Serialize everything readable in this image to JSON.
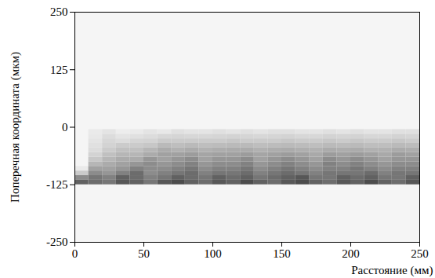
{
  "chart_data": {
    "type": "heatmap",
    "x_label": "Расстояние (мм)",
    "y_label": "Поперечная координата (мкм)",
    "xlim": [
      0,
      250
    ],
    "xticks": [
      0,
      50,
      100,
      150,
      200,
      250
    ],
    "ylim": [
      -250,
      250
    ],
    "yticks": [
      -250,
      -125,
      0,
      125,
      250
    ],
    "x": [
      5,
      15,
      25,
      35,
      45,
      55,
      65,
      75,
      85,
      95,
      105,
      115,
      125,
      135,
      145,
      155,
      165,
      175,
      185,
      195,
      205,
      215,
      225,
      235,
      245
    ],
    "y": [
      -120,
      -110,
      -100,
      -90,
      -80,
      -70,
      -60,
      -50,
      -40,
      -30,
      -20,
      -10
    ],
    "zlim": [
      0,
      1
    ],
    "values": [
      [
        0.7,
        0.65,
        0.6,
        0.75,
        0.7,
        0.6,
        0.75,
        0.8,
        0.7,
        0.65,
        0.75,
        0.7,
        0.8,
        0.7,
        0.65,
        0.75,
        0.8,
        0.7,
        0.65,
        0.75,
        0.7,
        0.8,
        0.7,
        0.65,
        0.75
      ],
      [
        0.5,
        0.6,
        0.55,
        0.7,
        0.65,
        0.55,
        0.6,
        0.7,
        0.65,
        0.6,
        0.7,
        0.65,
        0.7,
        0.6,
        0.65,
        0.7,
        0.75,
        0.6,
        0.6,
        0.7,
        0.65,
        0.7,
        0.6,
        0.6,
        0.7
      ],
      [
        0.2,
        0.5,
        0.45,
        0.55,
        0.65,
        0.5,
        0.55,
        0.6,
        0.65,
        0.55,
        0.6,
        0.6,
        0.65,
        0.55,
        0.6,
        0.65,
        0.6,
        0.55,
        0.6,
        0.6,
        0.6,
        0.65,
        0.55,
        0.6,
        0.6
      ],
      [
        0.05,
        0.4,
        0.4,
        0.45,
        0.55,
        0.5,
        0.5,
        0.55,
        0.6,
        0.5,
        0.55,
        0.55,
        0.6,
        0.5,
        0.55,
        0.6,
        0.55,
        0.5,
        0.55,
        0.55,
        0.6,
        0.55,
        0.5,
        0.55,
        0.55
      ],
      [
        0,
        0.3,
        0.35,
        0.4,
        0.45,
        0.5,
        0.45,
        0.5,
        0.55,
        0.45,
        0.5,
        0.5,
        0.55,
        0.45,
        0.5,
        0.55,
        0.5,
        0.45,
        0.55,
        0.5,
        0.55,
        0.5,
        0.45,
        0.5,
        0.5
      ],
      [
        0,
        0.22,
        0.3,
        0.35,
        0.35,
        0.45,
        0.4,
        0.45,
        0.5,
        0.4,
        0.45,
        0.45,
        0.5,
        0.4,
        0.45,
        0.5,
        0.45,
        0.4,
        0.5,
        0.45,
        0.5,
        0.45,
        0.4,
        0.45,
        0.45
      ],
      [
        0,
        0.16,
        0.25,
        0.3,
        0.3,
        0.35,
        0.4,
        0.4,
        0.42,
        0.38,
        0.4,
        0.4,
        0.42,
        0.38,
        0.4,
        0.42,
        0.4,
        0.36,
        0.42,
        0.4,
        0.42,
        0.4,
        0.36,
        0.42,
        0.4
      ],
      [
        0,
        0.12,
        0.2,
        0.25,
        0.25,
        0.3,
        0.35,
        0.32,
        0.35,
        0.32,
        0.34,
        0.35,
        0.35,
        0.32,
        0.34,
        0.35,
        0.33,
        0.32,
        0.35,
        0.34,
        0.35,
        0.32,
        0.32,
        0.35,
        0.34
      ],
      [
        0,
        0.1,
        0.16,
        0.2,
        0.2,
        0.22,
        0.28,
        0.26,
        0.28,
        0.26,
        0.27,
        0.28,
        0.28,
        0.26,
        0.27,
        0.28,
        0.27,
        0.26,
        0.28,
        0.27,
        0.28,
        0.26,
        0.26,
        0.28,
        0.27
      ],
      [
        0,
        0.08,
        0.14,
        0.12,
        0.15,
        0.16,
        0.2,
        0.2,
        0.2,
        0.2,
        0.2,
        0.22,
        0.2,
        0.2,
        0.2,
        0.22,
        0.2,
        0.2,
        0.22,
        0.2,
        0.22,
        0.2,
        0.2,
        0.22,
        0.2
      ],
      [
        0,
        0.06,
        0.12,
        0.08,
        0.1,
        0.12,
        0.14,
        0.15,
        0.14,
        0.14,
        0.15,
        0.16,
        0.15,
        0.14,
        0.15,
        0.16,
        0.14,
        0.14,
        0.16,
        0.15,
        0.16,
        0.14,
        0.14,
        0.16,
        0.15
      ],
      [
        0,
        0.05,
        0.08,
        0.04,
        0.05,
        0.08,
        0.06,
        0.1,
        0.08,
        0.08,
        0.1,
        0.08,
        0.1,
        0.08,
        0.1,
        0.1,
        0.08,
        0.08,
        0.1,
        0.08,
        0.1,
        0.08,
        0.08,
        0.1,
        0.1
      ]
    ]
  }
}
